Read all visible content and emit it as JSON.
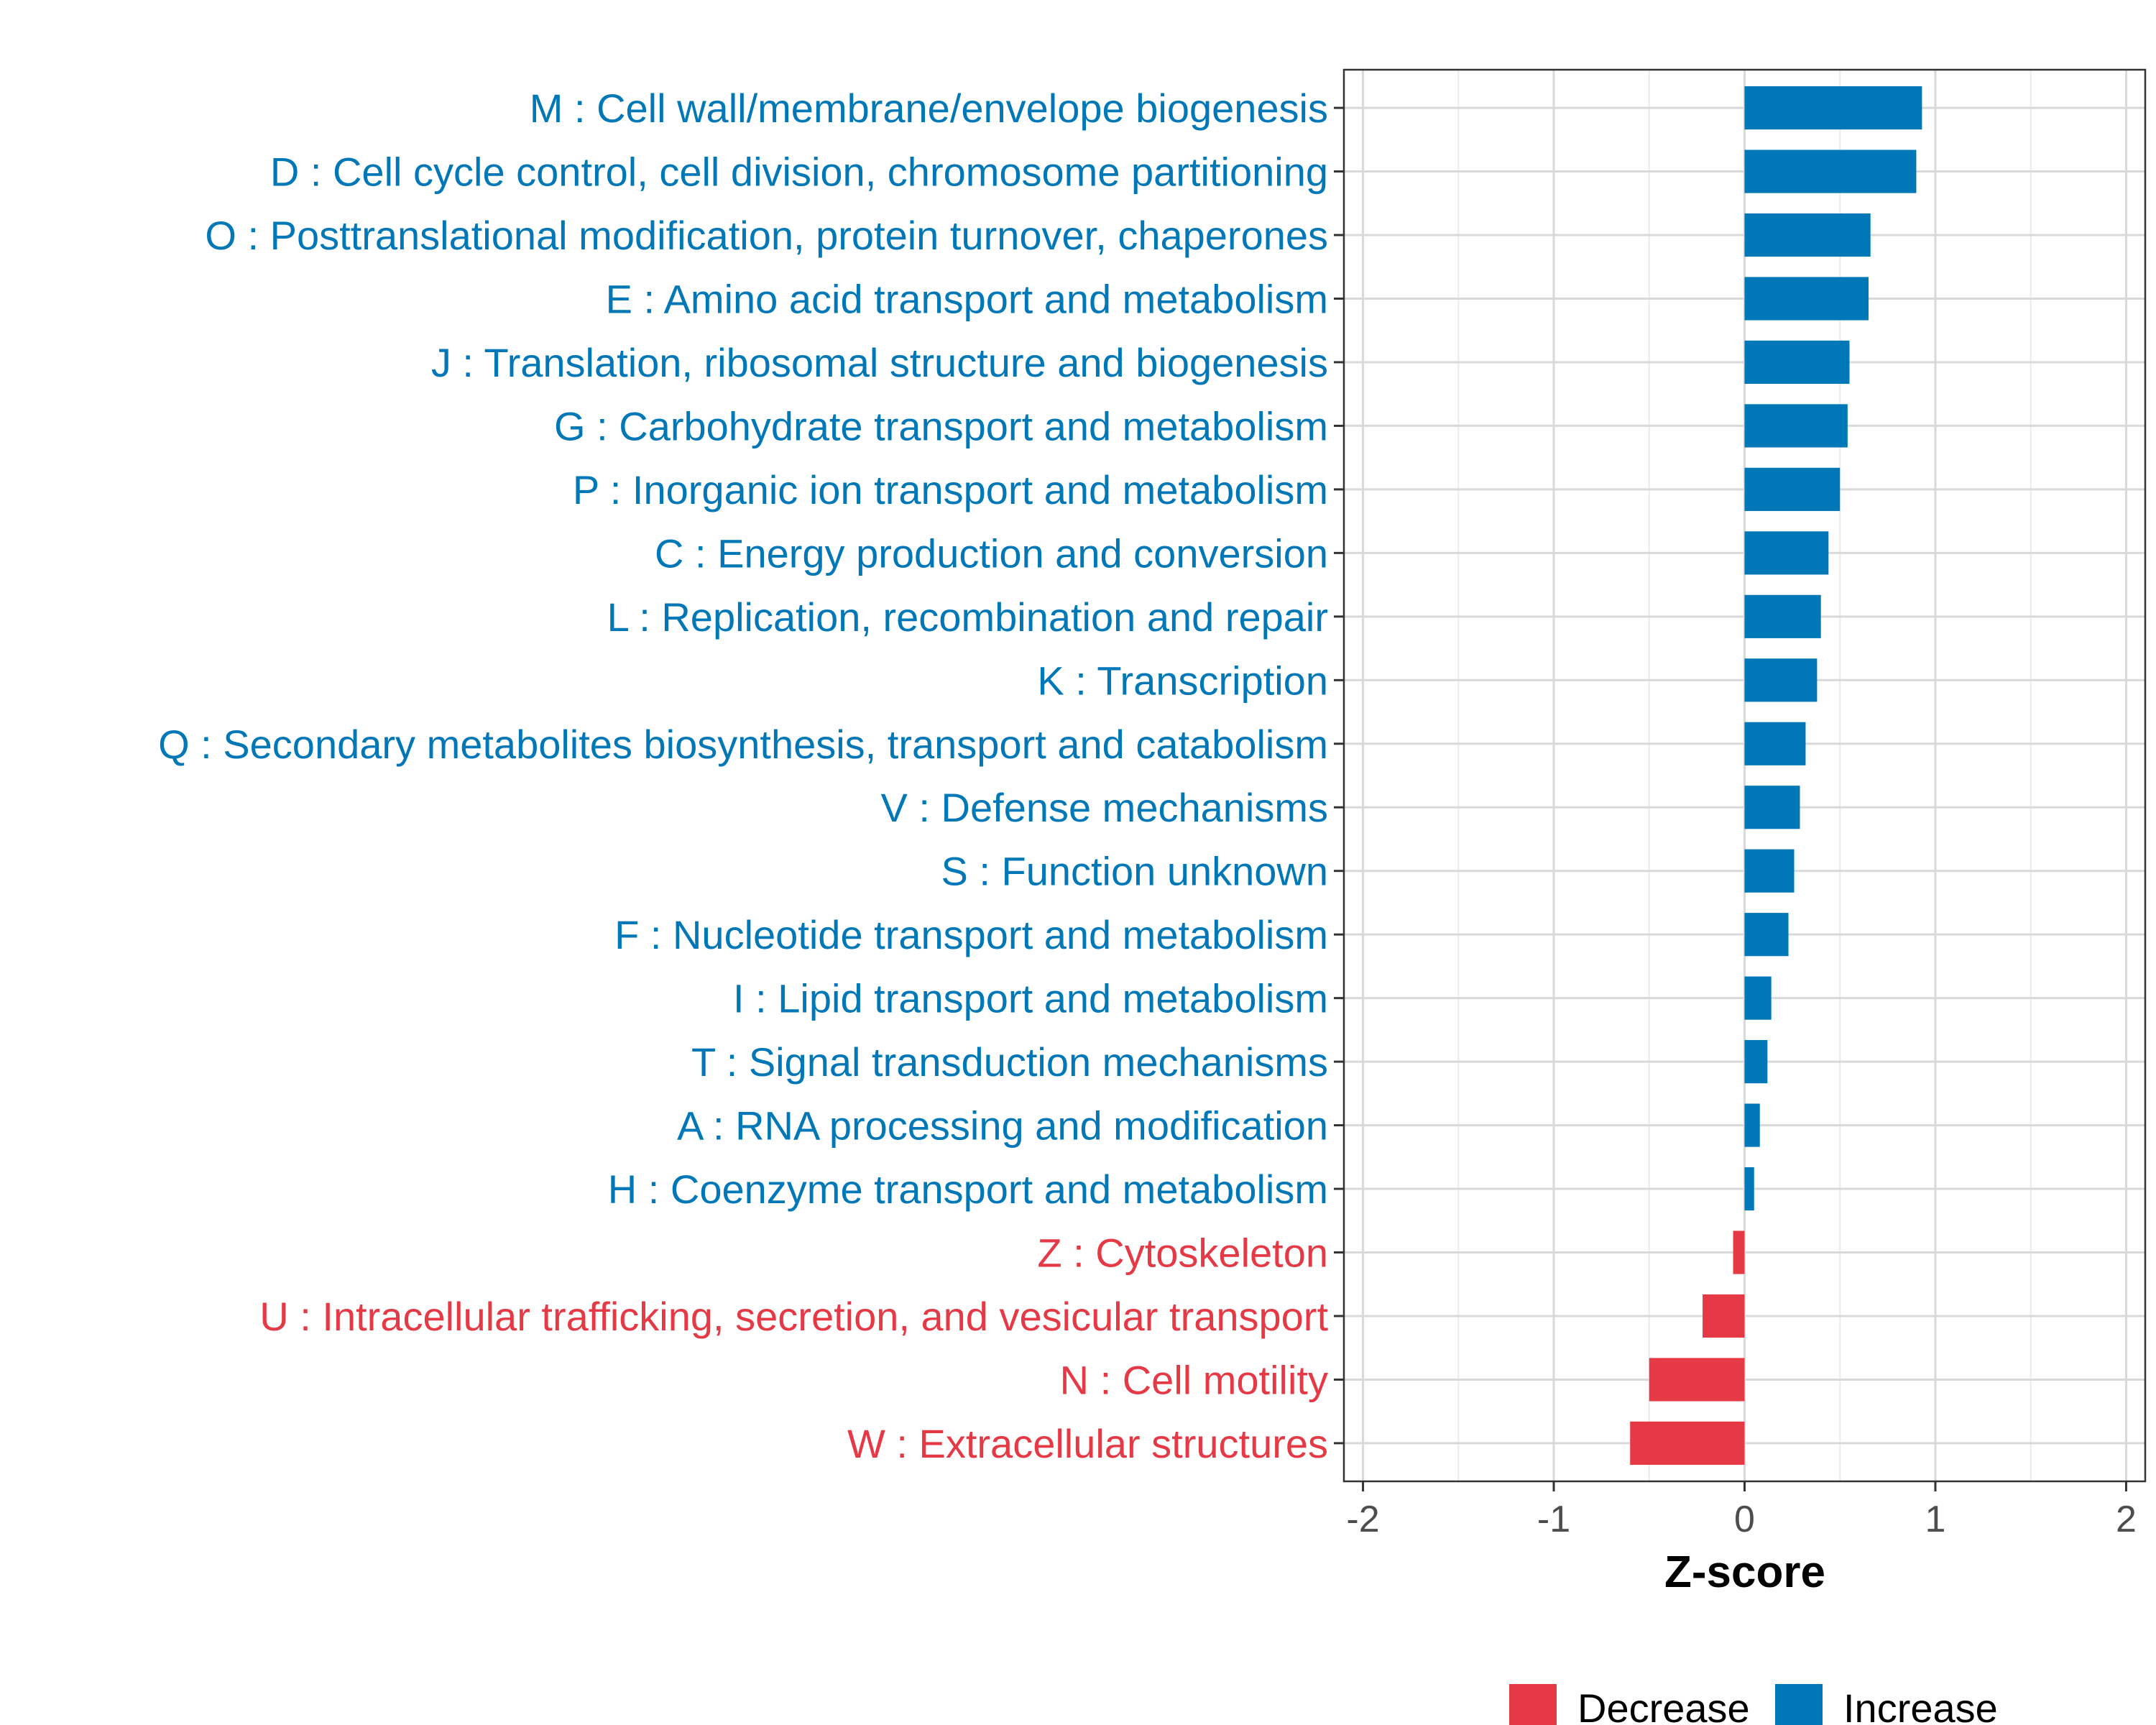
{
  "chart_data": {
    "type": "bar",
    "orientation": "horizontal",
    "title": "",
    "xlabel": "Z-score",
    "ylabel": "",
    "xlim": [
      -2.1,
      2.1
    ],
    "xticks": [
      -2,
      -1,
      0,
      1,
      2
    ],
    "xtick_labels": [
      "-2",
      "-1",
      "0",
      "1",
      "2"
    ],
    "grid": true,
    "legend_position": "bottom",
    "colors": {
      "Increase": "#0077b6",
      "Decrease": "#e63946"
    },
    "legend": [
      {
        "label": "Decrease",
        "color": "#e63946"
      },
      {
        "label": "Increase",
        "color": "#0077b6"
      }
    ],
    "categories": [
      "M : Cell wall/membrane/envelope biogenesis",
      "D : Cell cycle control, cell division, chromosome partitioning",
      "O : Posttranslational modification, protein turnover, chaperones",
      "E : Amino acid transport and metabolism",
      "J : Translation, ribosomal structure and biogenesis",
      "G : Carbohydrate transport and metabolism",
      "P : Inorganic ion transport and metabolism",
      "C : Energy production and conversion",
      "L : Replication, recombination and repair",
      "K : Transcription",
      "Q : Secondary metabolites biosynthesis, transport and catabolism",
      "V : Defense mechanisms",
      "S : Function unknown",
      "F : Nucleotide transport and metabolism",
      "I : Lipid transport and metabolism",
      "T : Signal transduction mechanisms",
      "A : RNA processing and modification",
      "H : Coenzyme transport and metabolism",
      "Z : Cytoskeleton",
      "U : Intracellular trafficking, secretion, and vesicular transport",
      "N : Cell motility",
      "W : Extracellular structures"
    ],
    "values": [
      0.93,
      0.9,
      0.66,
      0.65,
      0.55,
      0.54,
      0.5,
      0.44,
      0.4,
      0.38,
      0.32,
      0.29,
      0.26,
      0.23,
      0.14,
      0.12,
      0.08,
      0.05,
      -0.06,
      -0.22,
      -0.5,
      -0.6
    ],
    "groups": [
      "Increase",
      "Increase",
      "Increase",
      "Increase",
      "Increase",
      "Increase",
      "Increase",
      "Increase",
      "Increase",
      "Increase",
      "Increase",
      "Increase",
      "Increase",
      "Increase",
      "Increase",
      "Increase",
      "Increase",
      "Increase",
      "Decrease",
      "Decrease",
      "Decrease",
      "Decrease"
    ]
  }
}
